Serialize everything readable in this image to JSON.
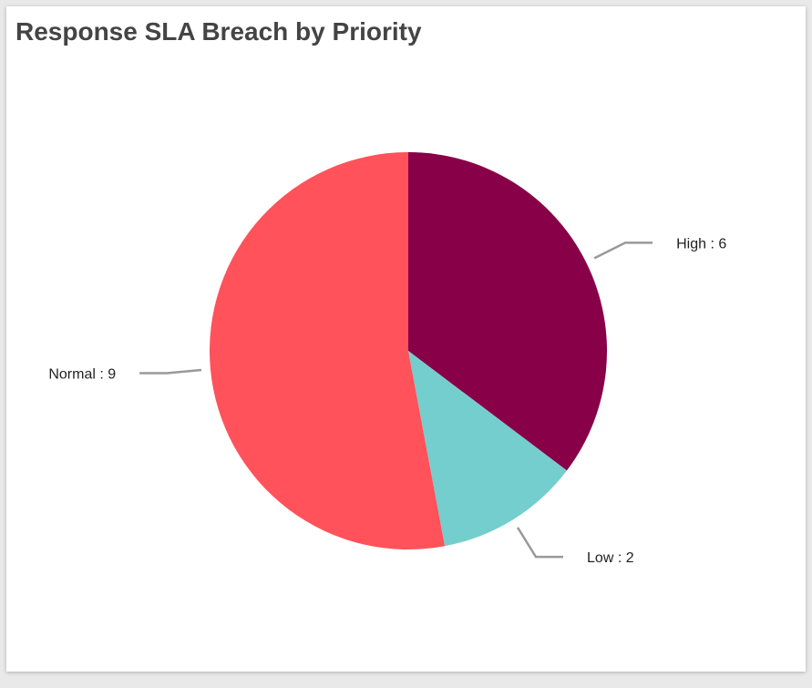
{
  "chart_data": {
    "type": "pie",
    "title": "Response SLA Breach by Priority",
    "slices": [
      {
        "label": "High",
        "value": 6,
        "color": "#880047",
        "display": "High : 6"
      },
      {
        "label": "Low",
        "value": 2,
        "color": "#74CECE",
        "display": "Low : 2"
      },
      {
        "label": "Normal",
        "value": 9,
        "color": "#FF525A",
        "display": "Normal : 9"
      }
    ],
    "start_angle": "12 o'clock",
    "direction": "clockwise",
    "leader_line_color": "#999999",
    "legend": "none"
  }
}
